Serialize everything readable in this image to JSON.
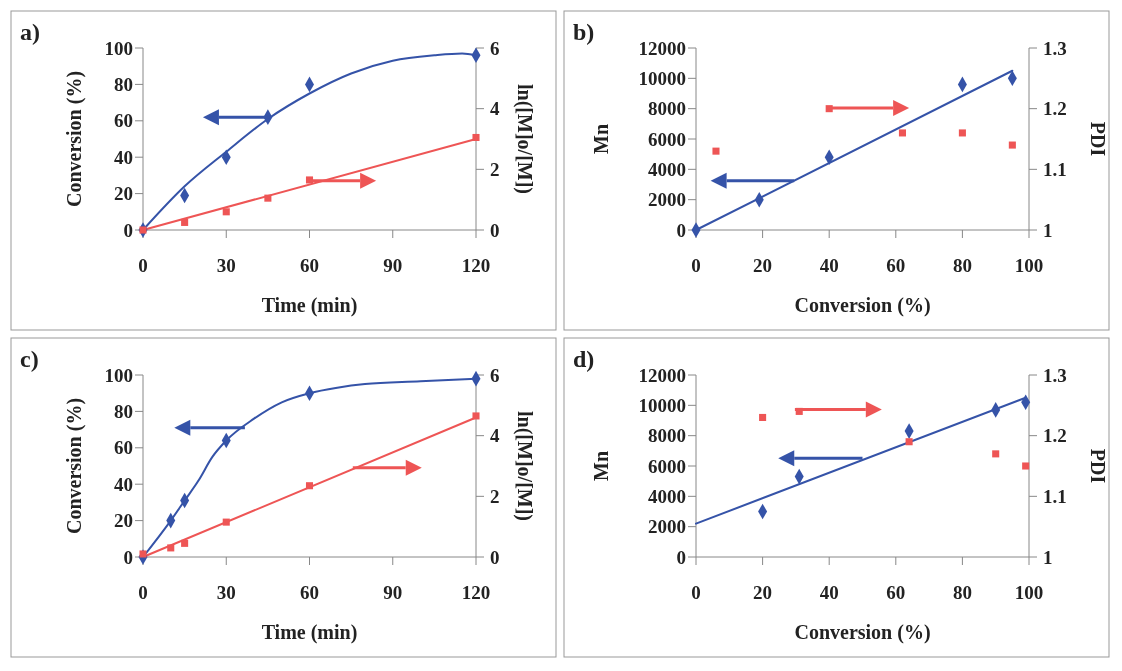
{
  "chart_data": [
    {
      "type": "scatter",
      "title": "a)",
      "xlabel": "Time (min)",
      "ylabel": "Conversion (%)",
      "y2label": "ln([M]o/[M])",
      "xlim": [
        0,
        120
      ],
      "xticks": [
        0,
        30,
        60,
        90,
        120
      ],
      "ylim": [
        0,
        100
      ],
      "yticks": [
        0,
        20,
        40,
        60,
        80,
        100
      ],
      "y2lim": [
        0,
        6
      ],
      "y2ticks": [
        0,
        2,
        4,
        6
      ],
      "grid": false,
      "series": [
        {
          "type": "scatter",
          "marker": "diamond",
          "color": "#3553a8",
          "x": [
            0,
            15,
            30,
            45,
            60,
            120
          ],
          "values": [
            0,
            19,
            40,
            62,
            80,
            96
          ]
        },
        {
          "type": "line",
          "marker": "none",
          "line_style": "solid",
          "color": "#3553a8",
          "x": [
            0,
            15,
            30,
            45,
            60,
            75,
            90,
            105,
            115,
            120
          ],
          "values": [
            0,
            24,
            43,
            61,
            75,
            86,
            93,
            96,
            97,
            96
          ]
        },
        {
          "type": "scatter",
          "marker": "square",
          "axis": "y2",
          "color": "#ee5555",
          "x": [
            0,
            15,
            30,
            45,
            60,
            120
          ],
          "values": [
            0,
            0.25,
            0.6,
            1.05,
            1.65,
            3.05
          ]
        },
        {
          "type": "line",
          "marker": "none",
          "line_style": "solid",
          "axis": "y2",
          "color": "#ee5555",
          "x": [
            0,
            120
          ],
          "values": [
            0,
            3.0
          ]
        }
      ]
    },
    {
      "type": "scatter",
      "title": "b)",
      "xlabel": "Conversion (%)",
      "ylabel": "Mn",
      "y2label": "PDI",
      "xlim": [
        0,
        100
      ],
      "xticks": [
        0,
        20,
        40,
        60,
        80,
        100
      ],
      "ylim": [
        0,
        12000
      ],
      "yticks": [
        0,
        2000,
        4000,
        6000,
        8000,
        10000,
        12000
      ],
      "y2lim": [
        1,
        1.3
      ],
      "y2ticks": [
        1,
        1.1,
        1.2,
        1.3
      ],
      "grid": false,
      "series": [
        {
          "type": "scatter",
          "marker": "diamond",
          "color": "#3553a8",
          "x": [
            0,
            19,
            40,
            80,
            95
          ],
          "values": [
            0,
            2000,
            4800,
            9600,
            10000
          ]
        },
        {
          "type": "line",
          "marker": "none",
          "line_style": "solid",
          "color": "#3553a8",
          "x": [
            0,
            95
          ],
          "values": [
            0,
            10500
          ]
        },
        {
          "type": "scatter",
          "marker": "square",
          "axis": "y2",
          "color": "#ee5555",
          "x": [
            6,
            40,
            62,
            80,
            95
          ],
          "values": [
            1.13,
            1.2,
            1.16,
            1.16,
            1.14
          ]
        }
      ]
    },
    {
      "type": "scatter",
      "title": "c)",
      "xlabel": "Time (min)",
      "ylabel": "Conversion (%)",
      "y2label": "ln([M]o/[M])",
      "xlim": [
        0,
        120
      ],
      "xticks": [
        0,
        30,
        60,
        90,
        120
      ],
      "ylim": [
        0,
        100
      ],
      "yticks": [
        0,
        20,
        40,
        60,
        80,
        100
      ],
      "y2lim": [
        0,
        6
      ],
      "y2ticks": [
        0,
        2,
        4,
        6
      ],
      "grid": false,
      "series": [
        {
          "type": "scatter",
          "marker": "diamond",
          "color": "#3553a8",
          "x": [
            0,
            10,
            15,
            30,
            60,
            120
          ],
          "values": [
            0,
            20,
            31,
            64,
            90,
            98
          ]
        },
        {
          "type": "line",
          "marker": "none",
          "line_style": "solid",
          "color": "#3553a8",
          "x": [
            0,
            10,
            15,
            20,
            25,
            30,
            40,
            50,
            60,
            70,
            80,
            100,
            120
          ],
          "values": [
            0,
            20,
            31,
            42,
            55,
            64,
            76,
            85,
            90,
            93,
            95,
            96.5,
            98
          ]
        },
        {
          "type": "scatter",
          "marker": "square",
          "axis": "y2",
          "color": "#ee5555",
          "x": [
            0,
            10,
            15,
            30,
            60,
            120
          ],
          "values": [
            0.1,
            0.3,
            0.45,
            1.15,
            2.35,
            4.65
          ]
        },
        {
          "type": "line",
          "marker": "none",
          "line_style": "solid",
          "axis": "y2",
          "color": "#ee5555",
          "x": [
            0,
            120
          ],
          "values": [
            0,
            4.6
          ]
        }
      ]
    },
    {
      "type": "scatter",
      "title": "d)",
      "xlabel": "Conversion (%)",
      "ylabel": "Mn",
      "y2label": "PDI",
      "xlim": [
        0,
        100
      ],
      "xticks": [
        0,
        20,
        40,
        60,
        80,
        100
      ],
      "ylim": [
        0,
        12000
      ],
      "yticks": [
        0,
        2000,
        4000,
        6000,
        8000,
        10000,
        12000
      ],
      "y2lim": [
        1,
        1.3
      ],
      "y2ticks": [
        1,
        1.1,
        1.2,
        1.3
      ],
      "grid": false,
      "series": [
        {
          "type": "scatter",
          "marker": "diamond",
          "color": "#3553a8",
          "x": [
            20,
            31,
            64,
            90,
            99
          ],
          "values": [
            3000,
            5300,
            8300,
            9700,
            10200
          ]
        },
        {
          "type": "line",
          "marker": "none",
          "line_style": "solid",
          "color": "#3553a8",
          "x": [
            0,
            99
          ],
          "values": [
            2200,
            10500
          ]
        },
        {
          "type": "scatter",
          "marker": "square",
          "axis": "y2",
          "color": "#ee5555",
          "x": [
            20,
            31,
            64,
            90,
            99
          ],
          "values": [
            1.23,
            1.24,
            1.19,
            1.17,
            1.15
          ]
        }
      ]
    }
  ]
}
